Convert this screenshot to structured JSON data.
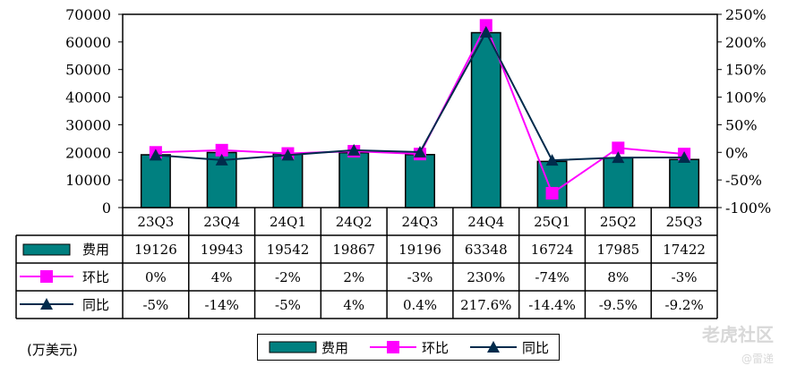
{
  "chart_data": {
    "type": "bar",
    "categories": [
      "23Q3",
      "23Q4",
      "24Q1",
      "24Q2",
      "24Q3",
      "24Q4",
      "25Q1",
      "25Q2",
      "25Q3"
    ],
    "series": [
      {
        "name": "费用",
        "kind": "bar",
        "axis": "left",
        "values": [
          19126,
          19943,
          19542,
          19867,
          19196,
          63348,
          16724,
          17985,
          17422
        ],
        "labels": [
          "19126",
          "19943",
          "19542",
          "19867",
          "19196",
          "63348",
          "16724",
          "17985",
          "17422"
        ],
        "color": "#008080"
      },
      {
        "name": "环比",
        "kind": "line",
        "axis": "right",
        "marker": "square",
        "values": [
          0,
          4,
          -2,
          2,
          -3,
          230,
          -74,
          8,
          -3
        ],
        "labels": [
          "0%",
          "4%",
          "-2%",
          "2%",
          "-3%",
          "230%",
          "-74%",
          "8%",
          "-3%"
        ],
        "color": "#ff00ff"
      },
      {
        "name": "同比",
        "kind": "line",
        "axis": "right",
        "marker": "triangle",
        "values": [
          -5,
          -14,
          -5,
          4,
          0.4,
          217.6,
          -14.4,
          -9.5,
          -9.2
        ],
        "labels": [
          "-5%",
          "-14%",
          "-5%",
          "4%",
          "0.4%",
          "217.6%",
          "-14.4%",
          "-9.5%",
          "-9.2%"
        ],
        "color": "#002b4c"
      }
    ],
    "ylim": [
      0,
      70000
    ],
    "yticks": [
      "0",
      "10000",
      "20000",
      "30000",
      "40000",
      "50000",
      "60000",
      "70000"
    ],
    "y2lim": [
      -100,
      250
    ],
    "y2ticks": [
      "-100%",
      "-50%",
      "0%",
      "50%",
      "100%",
      "150%",
      "200%",
      "250%"
    ],
    "unit_note": "(万美元)",
    "legend_position": "bottom",
    "data_table": true,
    "grid": false
  },
  "watermark": {
    "brand": "老虎社区",
    "user": "@雷递"
  }
}
